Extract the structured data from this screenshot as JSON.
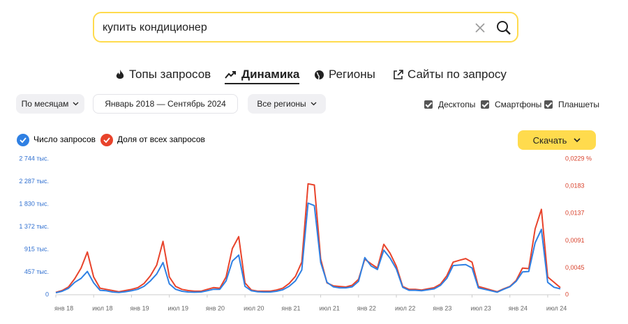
{
  "search": {
    "query": "купить кондиционер"
  },
  "tabs": [
    "Топы запросов",
    "Динамика",
    "Регионы",
    "Сайты по запросу"
  ],
  "filters": {
    "period_unit": "По месяцам",
    "range": "Январь 2018 — Сентябрь 2024",
    "region": "Все регионы"
  },
  "devices": [
    "Десктопы",
    "Смартфоны",
    "Планшеты"
  ],
  "download": "Скачать",
  "chart_data": {
    "type": "line",
    "categories": [
      "янв 18",
      null,
      null,
      null,
      null,
      null,
      "июл 18",
      null,
      null,
      null,
      null,
      null,
      "янв 19",
      null,
      null,
      null,
      null,
      null,
      "июл 19",
      null,
      null,
      null,
      null,
      null,
      "янв 20",
      null,
      null,
      null,
      null,
      null,
      "июл 20",
      null,
      null,
      null,
      null,
      null,
      "янв 21",
      null,
      null,
      null,
      null,
      null,
      "июл 21",
      null,
      null,
      null,
      null,
      null,
      "янв 22",
      null,
      null,
      null,
      null,
      null,
      "июл 22",
      null,
      null,
      null,
      null,
      null,
      "янв 23",
      null,
      null,
      null,
      null,
      null,
      "июл 23",
      null,
      null,
      null,
      null,
      null,
      "янв 24",
      null,
      null,
      null,
      null,
      null,
      "июл 24",
      null,
      null
    ],
    "series": [
      {
        "name": "Число запросов",
        "color": "#2f80e3",
        "values": [
          40,
          70,
          130,
          250,
          330,
          470,
          240,
          90,
          80,
          55,
          45,
          60,
          80,
          110,
          170,
          280,
          420,
          650,
          220,
          110,
          70,
          55,
          50,
          55,
          80,
          110,
          110,
          280,
          680,
          800,
          170,
          80,
          60,
          55,
          55,
          70,
          100,
          170,
          280,
          500,
          1850,
          1800,
          650,
          250,
          160,
          140,
          140,
          160,
          270,
          750,
          580,
          510,
          900,
          740,
          520,
          150,
          90,
          90,
          80,
          100,
          120,
          190,
          330,
          590,
          600,
          610,
          540,
          140,
          110,
          80,
          50,
          110,
          160,
          270,
          460,
          470,
          1050,
          1320,
          250,
          150,
          120
        ]
      },
      {
        "name": "Доля от всех запросов",
        "color": "#e8432b",
        "axis": "y2",
        "values": [
          0.0004,
          0.0007,
          0.0013,
          0.0027,
          0.0045,
          0.0072,
          0.003,
          0.0011,
          0.0009,
          0.0007,
          0.0005,
          0.0007,
          0.0009,
          0.0012,
          0.0019,
          0.0032,
          0.005,
          0.009,
          0.003,
          0.0014,
          0.0009,
          0.0007,
          0.0006,
          0.0006,
          0.0009,
          0.0012,
          0.0011,
          0.003,
          0.0078,
          0.0098,
          0.002,
          0.0008,
          0.0006,
          0.0006,
          0.0006,
          0.0008,
          0.0011,
          0.0019,
          0.0031,
          0.0055,
          0.0187,
          0.0185,
          0.006,
          0.002,
          0.0015,
          0.0014,
          0.0013,
          0.0016,
          0.0026,
          0.006,
          0.0052,
          0.0045,
          0.0085,
          0.007,
          0.0048,
          0.0014,
          0.0009,
          0.0009,
          0.0008,
          0.001,
          0.0012,
          0.0018,
          0.0032,
          0.0055,
          0.0058,
          0.0061,
          0.0055,
          0.0014,
          0.0011,
          0.0008,
          0.0005,
          0.001,
          0.0014,
          0.0024,
          0.0045,
          0.0044,
          0.0111,
          0.0144,
          0.003,
          0.0021,
          0.0012
        ]
      }
    ],
    "ylim": [
      0,
      2744
    ],
    "yticks": [
      0,
      {
        "value": 457,
        "label": "457 тыс."
      },
      {
        "value": 915,
        "label": "915 тыс."
      },
      {
        "value": 1372,
        "label": "1 372 тыс."
      },
      {
        "value": 1830,
        "label": "1 830 тыс."
      },
      {
        "value": 2287,
        "label": "2 287 тыс."
      },
      {
        "value": 2744,
        "label": "2 744 тыс."
      }
    ],
    "y2lim": [
      0,
      0.0229
    ],
    "y2ticks": [
      0,
      {
        "value": 0.0045,
        "label": "0,0045"
      },
      {
        "value": 0.0091,
        "label": "0,0091"
      },
      {
        "value": 0.0137,
        "label": "0,0137"
      },
      {
        "value": 0.0183,
        "label": "0,0183"
      },
      {
        "value": 0.0229,
        "label": "0,0229 %"
      }
    ],
    "grid": false
  }
}
